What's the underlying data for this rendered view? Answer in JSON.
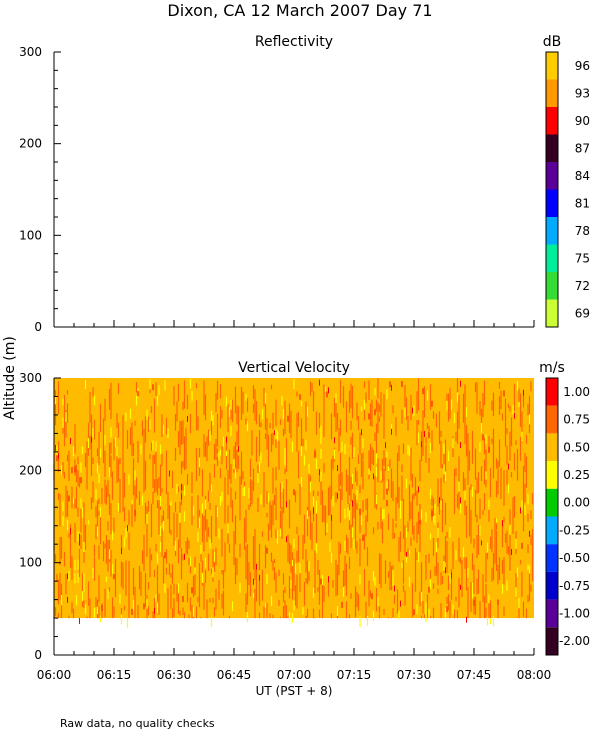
{
  "title": "Dixon, CA 12 March 2007  Day  71",
  "footnote": "Raw data, no quality checks",
  "chart_data": [
    {
      "type": "heatmap",
      "title": "Reflectivity",
      "ylabel": "Altitude (m)",
      "y_ticks": [
        0,
        100,
        200,
        300
      ],
      "ylim": [
        0,
        300
      ],
      "x_ticks": [
        "06:00",
        "06:15",
        "06:30",
        "06:45",
        "07:00",
        "07:15",
        "07:30",
        "07:45",
        "08:00"
      ],
      "xlim": [
        "06:00",
        "08:00"
      ],
      "values": [],
      "colorbar": {
        "unit": "dB",
        "labels": [
          "96",
          "93",
          "90",
          "87",
          "84",
          "81",
          "78",
          "75",
          "72",
          "69"
        ],
        "colors": [
          "#ffcc00",
          "#ff9900",
          "#ff0000",
          "#330022",
          "#5a0099",
          "#0000ff",
          "#00aaff",
          "#00ee99",
          "#33dd33",
          "#ccff33"
        ]
      }
    },
    {
      "type": "heatmap",
      "title": "Vertical Velocity",
      "ylabel": "Altitude (m)",
      "y_ticks": [
        0,
        100,
        200,
        300
      ],
      "ylim": [
        0,
        300
      ],
      "x_ticks": [
        "06:00",
        "06:15",
        "06:30",
        "06:45",
        "07:00",
        "07:15",
        "07:30",
        "07:45",
        "08:00"
      ],
      "xlim": [
        "06:00",
        "08:00"
      ],
      "xlabel": "UT   (PST + 8)",
      "data_altitude_range": [
        40,
        300
      ],
      "dominant_values": [
        0.5,
        0.75,
        0.25
      ],
      "colorbar": {
        "unit": "m/s",
        "labels": [
          "1.00",
          "0.75",
          "0.50",
          "0.25",
          "0.00",
          "-0.25",
          "-0.50",
          "-0.75",
          "-1.00",
          "-2.00"
        ],
        "colors": [
          "#ff0000",
          "#ff6600",
          "#ffbb00",
          "#ffff00",
          "#00cc00",
          "#00aaff",
          "#0033ff",
          "#0000cc",
          "#5a0099",
          "#330022"
        ]
      }
    }
  ]
}
